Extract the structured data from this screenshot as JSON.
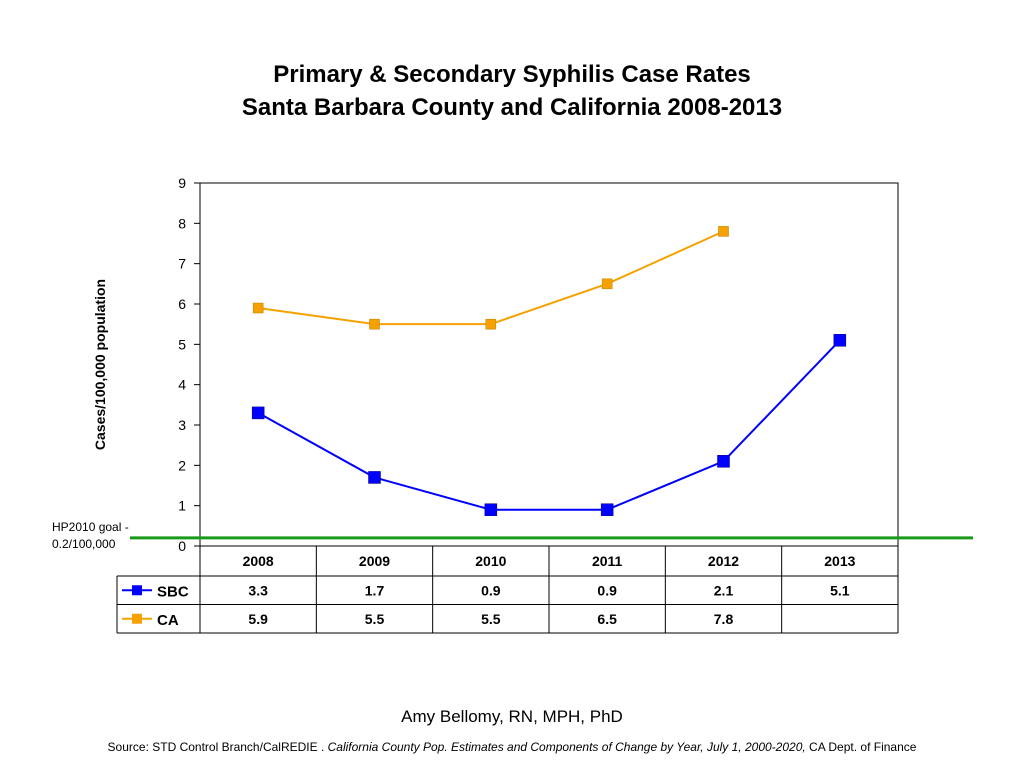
{
  "title_line1": "Primary & Secondary Syphilis Case Rates",
  "title_line2": "Santa Barbara County and California 2008-2013",
  "goal_label_line1": "HP2010 goal -",
  "goal_label_line2": "0.2/100,000",
  "author": "Amy Bellomy, RN, MPH, PhD",
  "source": {
    "prefix": "Source: STD Control Branch/CalREDIE . ",
    "italic": "California County Pop. Estimates and Components of Change by Year, July 1, 2000-2020,",
    "suffix": " CA  Dept. of Finance"
  },
  "chart_data": {
    "type": "line",
    "title": "Primary & Secondary Syphilis Case Rates Santa Barbara County and California 2008-2013",
    "ylabel": "Cases/100,000 population",
    "xlabel": "",
    "ylim": [
      0,
      9
    ],
    "yticks": [
      0,
      1,
      2,
      3,
      4,
      5,
      6,
      7,
      8,
      9
    ],
    "categories": [
      "2008",
      "2009",
      "2010",
      "2011",
      "2012",
      "2013"
    ],
    "series": [
      {
        "name": "SBC",
        "values": [
          3.3,
          1.7,
          0.9,
          0.9,
          2.1,
          5.1
        ],
        "labels": [
          "3.3",
          "1.7",
          "0.9",
          "0.9",
          "2.1",
          "5.1"
        ],
        "color": "#0000ff"
      },
      {
        "name": "CA",
        "values": [
          5.9,
          5.5,
          5.5,
          6.5,
          7.8,
          null
        ],
        "labels": [
          "5.9",
          "5.5",
          "5.5",
          "6.5",
          "7.8",
          ""
        ],
        "color": "#f5a200"
      }
    ],
    "reference_line": {
      "value": 0.2,
      "color": "#1a9a1a"
    },
    "grid": false,
    "legend": "data-table-below"
  }
}
